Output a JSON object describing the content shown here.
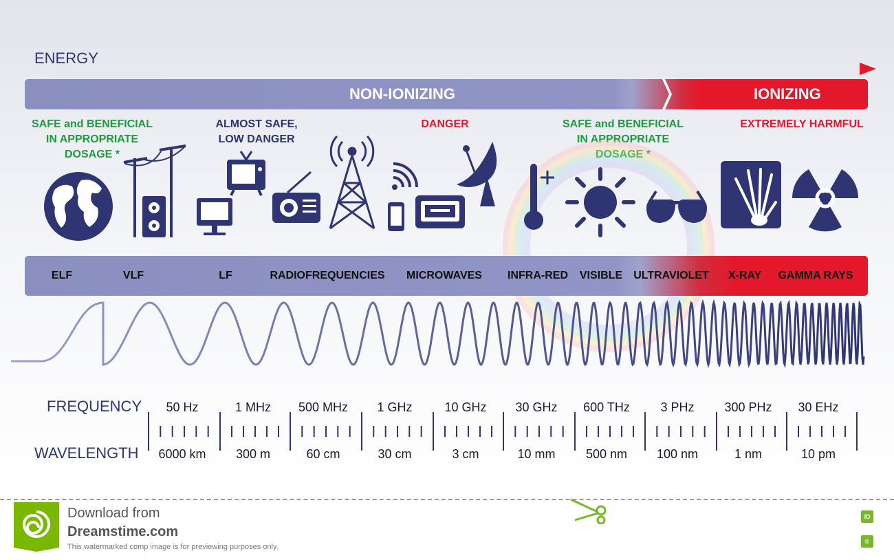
{
  "energy_label": "ENERGY",
  "colors": {
    "navy": "#2e3572",
    "band_blue": "#8f94c4",
    "red": "#e3192b",
    "green": "#1f9a3f"
  },
  "top_band": {
    "non_ionizing": "NON-IONIZING",
    "ionizing": "IONIZING"
  },
  "notes": [
    {
      "lines": [
        "SAFE and BENEFICIAL",
        "IN APPROPRIATE",
        "DOSAGE *"
      ],
      "color": "green"
    },
    {
      "lines": [
        "ALMOST SAFE,",
        "LOW DANGER"
      ],
      "color": "navy"
    },
    {
      "lines": [
        "DANGER"
      ],
      "color": "red"
    },
    {
      "lines": [
        "SAFE and BENEFICIAL",
        "IN APPROPRIATE",
        "DOSAGE *"
      ],
      "color": "green"
    },
    {
      "lines": [
        "EXTREMELY HARMFUL"
      ],
      "color": "red"
    }
  ],
  "icons": [
    "globe-icon",
    "power-line-icon",
    "power-socket-icon",
    "monitor-icon",
    "tv-icon",
    "radio-icon",
    "radio-tower-icon",
    "smartphone-wifi-icon",
    "microwave-oven-icon",
    "satellite-dish-icon",
    "thermometer-icon",
    "sun-icon",
    "sunglasses-icon",
    "xray-hand-icon",
    "radiation-icon"
  ],
  "categories": [
    "ELF",
    "VLF",
    "LF",
    "RADIOFREQUENCIES",
    "MICROWAVES",
    "INFRA-RED",
    "VISIBLE",
    "ULTRAVIOLET",
    "X-RAY",
    "GAMMA RAYS"
  ],
  "scale": {
    "frequency_label": "FREQUENCY",
    "wavelength_label": "WAVELENGTH",
    "frequencies": [
      "50 Hz",
      "1 MHz",
      "500 MHz",
      "1 GHz",
      "10 GHz",
      "30 GHz",
      "600 THz",
      "3 PHz",
      "300 PHz",
      "30 EHz"
    ],
    "wavelengths": [
      "6000 km",
      "300 m",
      "60 cm",
      "30 cm",
      "3 cm",
      "10 mm",
      "500 nm",
      "100 nm",
      "1 nm",
      "10 pm"
    ]
  },
  "footer": {
    "download_from": "Download from",
    "site": "Dreamstime.com",
    "disclaimer": "This watermarked comp image is for previewing purposes only.",
    "badge_id": "ID",
    "badge_copyright": "©"
  }
}
